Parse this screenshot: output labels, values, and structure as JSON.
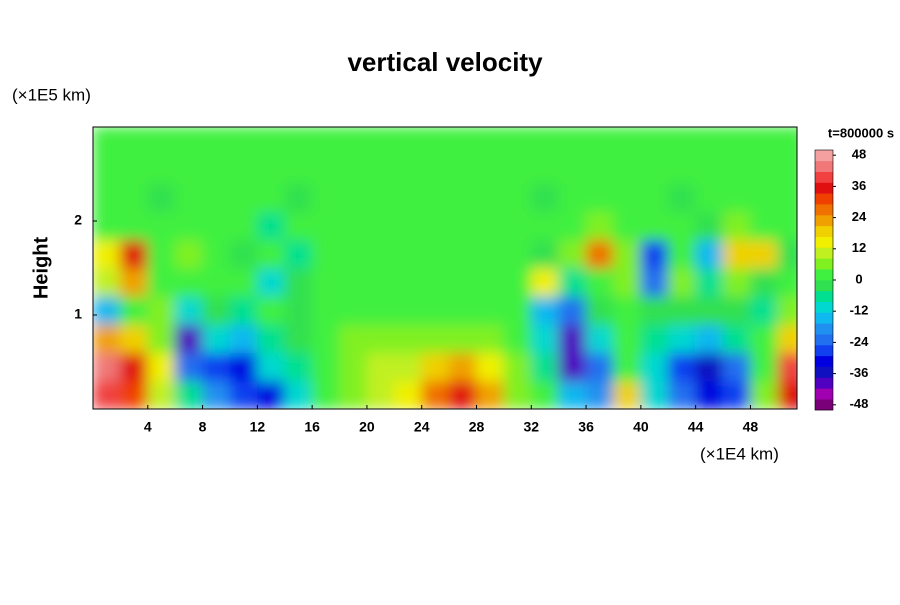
{
  "chart_data": {
    "type": "heatmap",
    "title": "vertical velocity",
    "y_unit": "(×1E5 km)",
    "ylabel": "Height",
    "x_unit": "(×1E4 km)",
    "time_label": "t=800000 s",
    "xlim": [
      0,
      51.4
    ],
    "ylim": [
      0,
      3
    ],
    "xticks": [
      4,
      8,
      12,
      16,
      20,
      24,
      28,
      32,
      36,
      40,
      44,
      48
    ],
    "yticks": [
      1,
      2
    ],
    "x": [
      1,
      3,
      5,
      7,
      9,
      11,
      13,
      15,
      17,
      19,
      21,
      23,
      25,
      27,
      29,
      31,
      33,
      35,
      37,
      39,
      41,
      43,
      45,
      47,
      49,
      51
    ],
    "y": [
      0.15,
      0.45,
      0.75,
      1.05,
      1.35,
      1.65,
      1.95,
      2.25,
      2.55,
      2.85
    ],
    "z": [
      [
        40,
        32,
        12,
        -8,
        -20,
        -28,
        -30,
        -10,
        4,
        8,
        10,
        16,
        28,
        36,
        24,
        8,
        4,
        -16,
        -20,
        20,
        -12,
        -24,
        -32,
        -28,
        8,
        36
      ],
      [
        44,
        36,
        16,
        -24,
        -28,
        -32,
        -12,
        -6,
        4,
        8,
        10,
        12,
        20,
        24,
        14,
        8,
        -8,
        -40,
        -24,
        4,
        -12,
        -28,
        -36,
        -24,
        4,
        40
      ],
      [
        24,
        20,
        8,
        -40,
        -12,
        -16,
        -8,
        -4,
        4,
        6,
        8,
        8,
        8,
        8,
        6,
        4,
        -12,
        -40,
        -12,
        0,
        -8,
        -12,
        -16,
        -8,
        0,
        20
      ],
      [
        -16,
        4,
        8,
        -12,
        -4,
        -6,
        4,
        -2,
        4,
        4,
        4,
        2,
        4,
        2,
        2,
        0,
        -16,
        -24,
        -4,
        0,
        -4,
        -4,
        -4,
        -2,
        -8,
        8
      ],
      [
        12,
        24,
        4,
        4,
        0,
        4,
        -12,
        -4,
        2,
        4,
        0,
        2,
        2,
        2,
        0,
        4,
        16,
        -8,
        4,
        8,
        -24,
        8,
        -8,
        8,
        -4,
        0
      ],
      [
        16,
        36,
        4,
        8,
        4,
        -4,
        4,
        -8,
        4,
        0,
        2,
        4,
        0,
        0,
        0,
        4,
        -4,
        8,
        28,
        8,
        -28,
        4,
        -16,
        20,
        20,
        -4
      ],
      [
        4,
        4,
        2,
        0,
        2,
        4,
        -6,
        4,
        2,
        2,
        2,
        2,
        4,
        2,
        2,
        0,
        4,
        2,
        8,
        4,
        4,
        4,
        -4,
        8,
        4,
        2
      ],
      [
        0,
        0,
        -2,
        0,
        0,
        0,
        0,
        -2,
        0,
        0,
        0,
        0,
        0,
        0,
        0,
        0,
        -2,
        0,
        0,
        0,
        0,
        -2,
        0,
        0,
        0,
        0
      ],
      [
        0,
        0,
        0,
        0,
        0,
        0,
        0,
        0,
        0,
        0,
        0,
        0,
        0,
        0,
        0,
        0,
        0,
        0,
        0,
        0,
        0,
        0,
        0,
        0,
        0,
        0
      ],
      [
        0,
        0,
        0,
        0,
        0,
        0,
        0,
        0,
        0,
        0,
        0,
        0,
        0,
        0,
        0,
        0,
        0,
        0,
        0,
        0,
        0,
        0,
        0,
        0,
        0,
        0
      ]
    ],
    "clim": [
      -50,
      50
    ],
    "cticks": [
      -48,
      -36,
      -24,
      -12,
      0,
      12,
      24,
      36,
      48
    ],
    "colors": [
      "#7a007a",
      "#a000b0",
      "#5000c0",
      "#1010c0",
      "#0000e0",
      "#1040f0",
      "#2070f0",
      "#2090f0",
      "#10b8f0",
      "#00d8d0",
      "#00e090",
      "#30e050",
      "#40f040",
      "#80f020",
      "#c0f020",
      "#f0f000",
      "#f0d000",
      "#f0a000",
      "#f07000",
      "#f04000",
      "#e01010",
      "#f04040",
      "#f07878",
      "#f4a0a0"
    ]
  }
}
